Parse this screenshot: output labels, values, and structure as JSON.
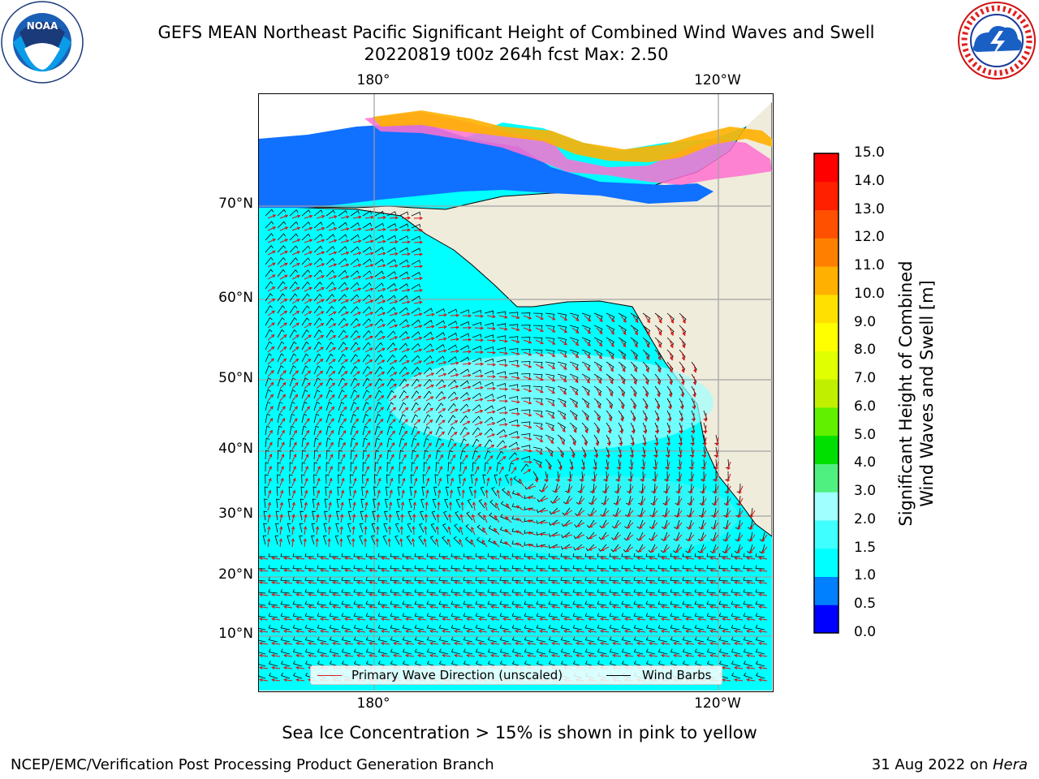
{
  "header": {
    "title_line1": "GEFS MEAN Northeast Pacific Significant Height of Combined Wind Waves and Swell",
    "title_line2": "20220819 t00z 264h fcst   Max: 2.50"
  },
  "logos": {
    "left": "noaa-logo",
    "right": "nws-logo"
  },
  "map": {
    "lon_labels": [
      "180°",
      "120°W"
    ],
    "lat_labels": [
      "70°N",
      "60°N",
      "50°N",
      "40°N",
      "30°N",
      "20°N",
      "10°N"
    ],
    "legend": {
      "wave_label": "Primary Wave Direction (unscaled)",
      "barb_label": "Wind Barbs"
    }
  },
  "colorbar": {
    "title_line1": "Significant Height of Combined",
    "title_line2": "Wind Waves and Swell [m]",
    "ticks": [
      "0.0",
      "0.5",
      "1.0",
      "1.5",
      "2.0",
      "3.0",
      "4.0",
      "5.0",
      "6.0",
      "7.0",
      "8.0",
      "9.0",
      "10.0",
      "11.0",
      "12.0",
      "13.0",
      "14.0",
      "15.0"
    ],
    "colors": [
      "#0000ff",
      "#0080ff",
      "#00ffff",
      "#40ffff",
      "#a0ffff",
      "#50f080",
      "#00e000",
      "#60f000",
      "#c0f000",
      "#e0ff00",
      "#ffff00",
      "#ffe000",
      "#ffb000",
      "#ff8000",
      "#ff5000",
      "#ff2000",
      "#ff0000"
    ]
  },
  "note": "Sea Ice Concentration > 15% is shown in pink to yellow",
  "footer": {
    "left": "NCEP/EMC/Verification Post Processing Product Generation Branch",
    "date": "31 Aug 2022 on ",
    "host": "Hera"
  }
}
